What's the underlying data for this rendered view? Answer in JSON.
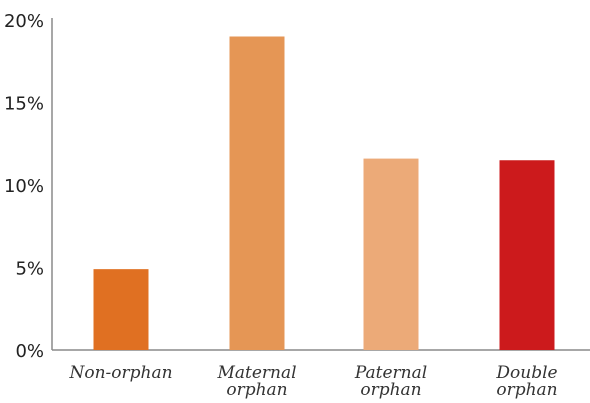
{
  "chart_data": {
    "type": "bar",
    "categories": [
      [
        "Non-orphan"
      ],
      [
        "Maternal",
        "orphan"
      ],
      [
        "Paternal",
        "orphan"
      ],
      [
        "Double",
        "orphan"
      ]
    ],
    "values": [
      4.9,
      19.0,
      11.6,
      11.5
    ],
    "colors": [
      "#e07022",
      "#e59655",
      "#ecaa78",
      "#cc1a1c"
    ],
    "title": "",
    "xlabel": "",
    "ylabel": "",
    "ylim": [
      0,
      20
    ],
    "yticks": [
      0,
      5,
      10,
      15,
      20
    ],
    "ytick_labels": [
      "0%",
      "5%",
      "10%",
      "15%",
      "20%"
    ],
    "grid": false,
    "legend": "none"
  }
}
